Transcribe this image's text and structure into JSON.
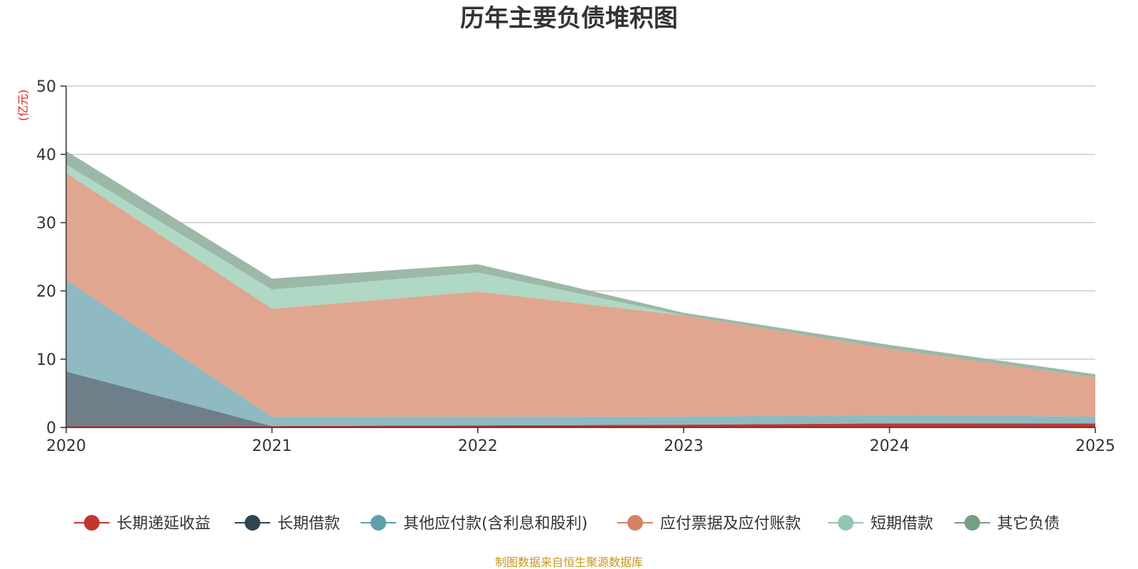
{
  "chart_data": {
    "type": "area",
    "stacked": true,
    "title": "历年主要负债堆积图",
    "ylabel": "(亿元)",
    "xlabel": "",
    "ylim": [
      0,
      50
    ],
    "yticks": [
      0,
      10,
      20,
      30,
      40,
      50
    ],
    "categories": [
      "2020",
      "2021",
      "2022",
      "2023",
      "2024",
      "2025"
    ],
    "grid": true,
    "legend_position": "bottom",
    "series": [
      {
        "name": "长期递延收益",
        "color": "#c23531",
        "fill": "#c23531",
        "values": [
          0.2,
          0.2,
          0.3,
          0.4,
          0.6,
          0.6
        ]
      },
      {
        "name": "长期借款",
        "color": "#2f4554",
        "fill": "#6e7f8a",
        "values": [
          8.0,
          0.0,
          0.0,
          0.0,
          0.0,
          0.0
        ]
      },
      {
        "name": "其他应付款(含利息和股利)",
        "color": "#61a0a8",
        "fill": "#8fbac1",
        "values": [
          13.4,
          1.4,
          1.3,
          1.2,
          1.2,
          1.0
        ]
      },
      {
        "name": "应付票据及应付账款",
        "color": "#d48265",
        "fill": "#e0a690",
        "values": [
          15.7,
          15.8,
          18.3,
          14.8,
          9.7,
          5.7
        ]
      },
      {
        "name": "短期借款",
        "color": "#91c7ae",
        "fill": "#afd8c5",
        "values": [
          1.2,
          2.8,
          2.8,
          0.0,
          0.0,
          0.0
        ]
      },
      {
        "name": "其它负债",
        "color": "#749f83",
        "fill": "#9cb8a6",
        "values": [
          2.0,
          1.6,
          1.2,
          0.4,
          0.6,
          0.5
        ]
      }
    ],
    "source": "制图数据来自恒生聚源数据库"
  }
}
